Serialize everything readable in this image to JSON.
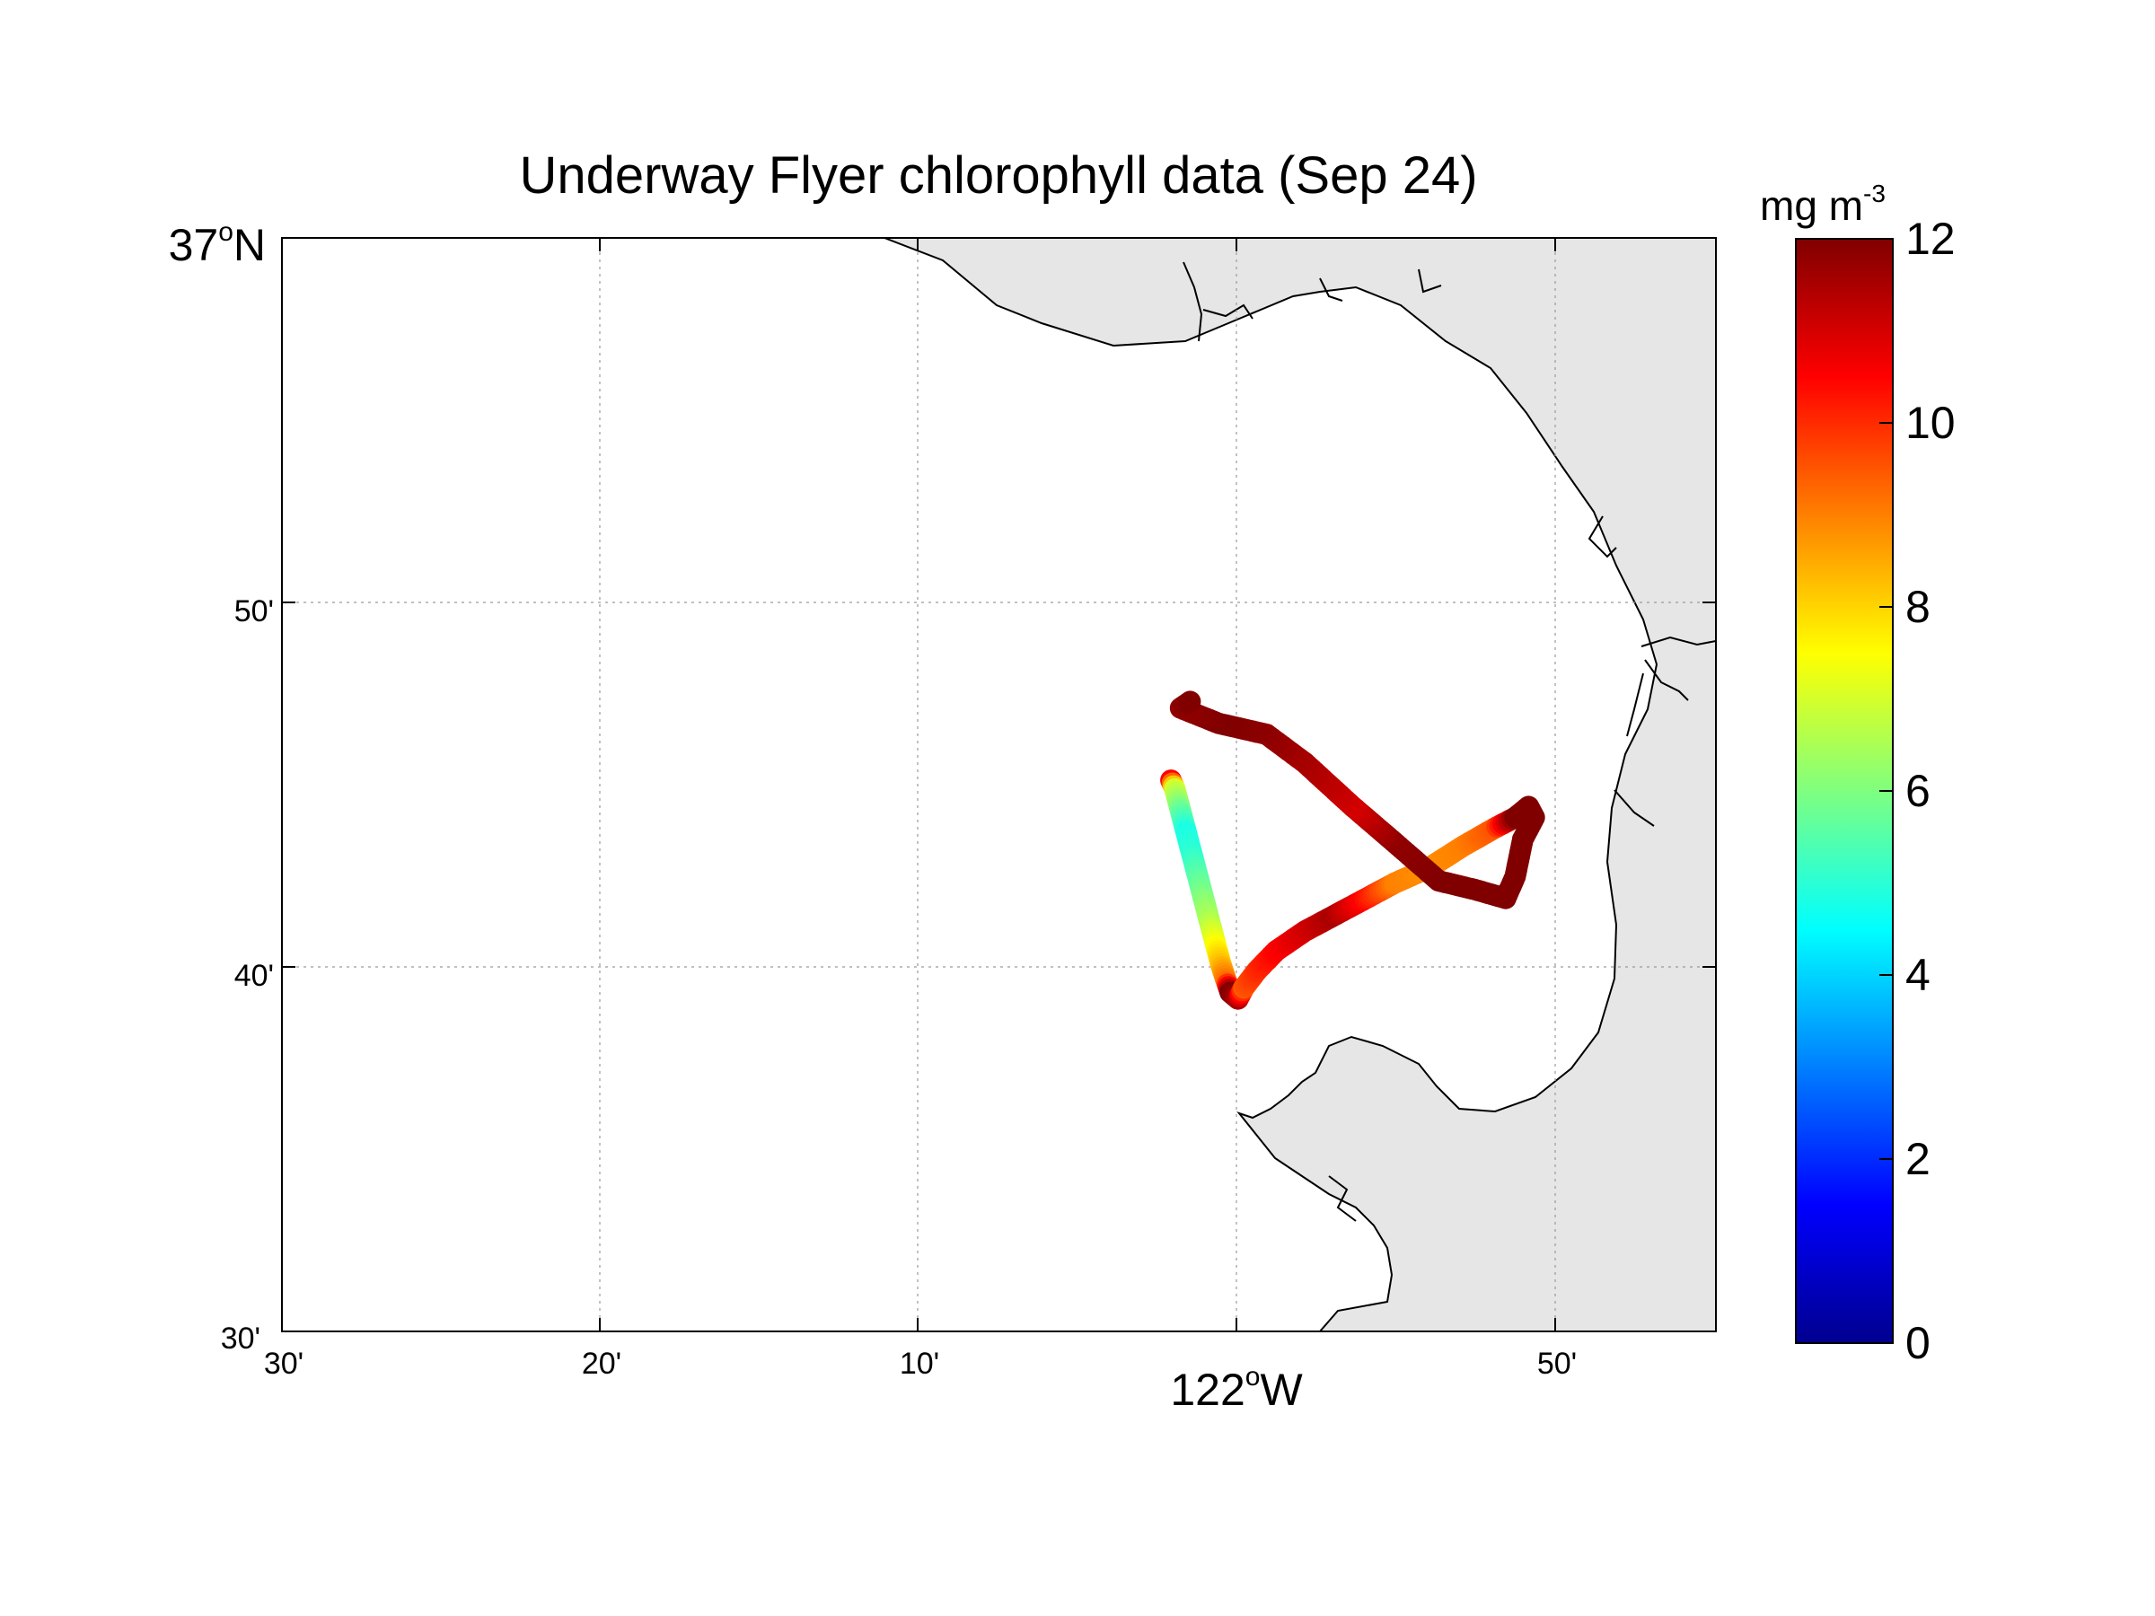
{
  "title": "Underway Flyer chlorophyll data (Sep 24)",
  "colorbar": {
    "label": "mg m",
    "label_exponent": "-3",
    "colormap": "jet",
    "min": 0,
    "max": 12,
    "ticks": [
      "0",
      "2",
      "4",
      "6",
      "8",
      "10",
      "12"
    ]
  },
  "axes": {
    "y_corner_label": {
      "deg": "37",
      "deg_sup": "o",
      "hemi": "N"
    },
    "y_ticks": [
      "50'",
      "40'",
      "30'"
    ],
    "x_ticks": [
      "30'",
      "20'",
      "10'",
      "50'"
    ],
    "x_center_label": {
      "deg": "122",
      "deg_sup": "o",
      "hemi": "W"
    }
  },
  "colors": {
    "land": "#e6e6e6",
    "coastline": "#000000",
    "grid": "#9a9a9a"
  },
  "chart_data": {
    "type": "scatter",
    "title": "Underway Flyer chlorophyll data (Sep 24)",
    "variable": "chlorophyll",
    "units": "mg m^-3",
    "x_axis": "longitude (°W)",
    "y_axis": "latitude (°N)",
    "xlim": [
      -122.5,
      -121.75
    ],
    "ylim": [
      36.5,
      37.0
    ],
    "clim": [
      0,
      12
    ],
    "grid": true,
    "track": [
      {
        "lon": -122.035,
        "lat": 36.752,
        "chl": 10.5
      },
      {
        "lon": -122.033,
        "lat": 36.748,
        "chl": 7.0
      },
      {
        "lon": -122.03,
        "lat": 36.738,
        "chl": 5.8
      },
      {
        "lon": -122.027,
        "lat": 36.728,
        "chl": 4.8
      },
      {
        "lon": -122.024,
        "lat": 36.718,
        "chl": 5.0
      },
      {
        "lon": -122.021,
        "lat": 36.708,
        "chl": 5.5
      },
      {
        "lon": -122.018,
        "lat": 36.698,
        "chl": 6.0
      },
      {
        "lon": -122.015,
        "lat": 36.688,
        "chl": 6.5
      },
      {
        "lon": -122.012,
        "lat": 36.678,
        "chl": 7.3
      },
      {
        "lon": -122.009,
        "lat": 36.668,
        "chl": 8.2
      },
      {
        "lon": -122.006,
        "lat": 36.66,
        "chl": 9.2
      },
      {
        "lon": -122.004,
        "lat": 36.655,
        "chl": 12.0
      },
      {
        "lon": -122.0,
        "lat": 36.652,
        "chl": 11.5
      },
      {
        "lon": -121.997,
        "lat": 36.657,
        "chl": 9.5
      },
      {
        "lon": -121.99,
        "lat": 36.665,
        "chl": 10.0
      },
      {
        "lon": -121.98,
        "lat": 36.674,
        "chl": 10.5
      },
      {
        "lon": -121.965,
        "lat": 36.683,
        "chl": 11.0
      },
      {
        "lon": -121.95,
        "lat": 36.69,
        "chl": 11.5
      },
      {
        "lon": -121.935,
        "lat": 36.697,
        "chl": 10.5
      },
      {
        "lon": -121.918,
        "lat": 36.705,
        "chl": 9.0
      },
      {
        "lon": -121.9,
        "lat": 36.712,
        "chl": 8.8
      },
      {
        "lon": -121.882,
        "lat": 36.722,
        "chl": 9.0
      },
      {
        "lon": -121.866,
        "lat": 36.73,
        "chl": 9.5
      },
      {
        "lon": -121.855,
        "lat": 36.735,
        "chl": 12.0
      },
      {
        "lon": -121.848,
        "lat": 36.74,
        "chl": 12.0
      },
      {
        "lon": -121.845,
        "lat": 36.735,
        "chl": 12.0
      },
      {
        "lon": -121.851,
        "lat": 36.725,
        "chl": 12.0
      },
      {
        "lon": -121.855,
        "lat": 36.708,
        "chl": 12.0
      },
      {
        "lon": -121.86,
        "lat": 36.698,
        "chl": 12.0
      },
      {
        "lon": -121.876,
        "lat": 36.702,
        "chl": 12.0
      },
      {
        "lon": -121.895,
        "lat": 36.706,
        "chl": 12.0
      },
      {
        "lon": -121.92,
        "lat": 36.725,
        "chl": 11.8
      },
      {
        "lon": -121.94,
        "lat": 36.74,
        "chl": 11.0
      },
      {
        "lon": -121.965,
        "lat": 36.76,
        "chl": 11.5
      },
      {
        "lon": -121.985,
        "lat": 36.773,
        "chl": 11.8
      },
      {
        "lon": -122.01,
        "lat": 36.778,
        "chl": 12.0
      },
      {
        "lon": -122.03,
        "lat": 36.785,
        "chl": 11.8
      },
      {
        "lon": -122.025,
        "lat": 36.788,
        "chl": 12.0
      }
    ]
  }
}
